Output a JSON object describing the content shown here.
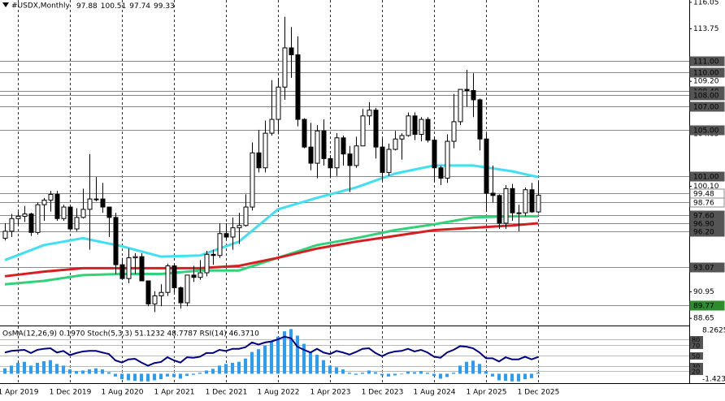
{
  "chart_data": {
    "type": "candlestick",
    "title": "#USDX,Monthly",
    "categories": [
      "Feb 2019",
      "Mar 2019",
      "Apr 2019",
      "May 2019",
      "Jun 2019",
      "Jul 2019",
      "Aug 2019",
      "Sep 2019",
      "Oct 2019",
      "Nov 2019",
      "Dec 2019",
      "Jan 2020",
      "Feb 2020",
      "Mar 2020",
      "Apr 2020",
      "May 2020",
      "Jun 2020",
      "Jul 2020",
      "Aug 2020",
      "Sep 2020",
      "Oct 2020",
      "Nov 2020",
      "Dec 2020",
      "Jan 2021",
      "Feb 2021",
      "Mar 2021",
      "Apr 2021",
      "May 2021",
      "Jun 2021",
      "Jul 2021",
      "Aug 2021",
      "Sep 2021",
      "Oct 2021",
      "Nov 2021",
      "Dec 2021",
      "Jan 2022",
      "Feb 2022",
      "Mar 2022",
      "Apr 2022",
      "May 2022",
      "Jun 2022",
      "Jul 2022",
      "Aug 2022",
      "Sep 2022",
      "Oct 2022",
      "Nov 2022",
      "Dec 2022",
      "Jan 2023",
      "Feb 2023",
      "Mar 2023",
      "Apr 2023",
      "May 2023",
      "Jun 2023",
      "Jul 2023",
      "Aug 2023",
      "Sep 2023",
      "Oct 2023",
      "Nov 2023",
      "Dec 2023",
      "Jan 2024",
      "Feb 2024",
      "Mar 2024",
      "Apr 2024",
      "May 2024",
      "Jun 2024",
      "Jul 2024",
      "Aug 2024",
      "Sep 2024",
      "Oct 2024",
      "Nov 2024",
      "Dec 2024",
      "Jan 2025",
      "Feb 2025",
      "Mar 2025",
      "Apr 2025",
      "May 2025",
      "Jun 2025",
      "Jul 2025",
      "Aug 2025",
      "Sep 2025",
      "Oct 2025",
      "Nov 2025",
      "Dec 2025"
    ],
    "open": [
      95.6,
      96.2,
      97.3,
      97.5,
      97.7,
      96.1,
      98.5,
      98.9,
      99.4,
      97.3,
      98.3,
      96.4,
      97.4,
      98.1,
      99.0,
      99.0,
      98.3,
      97.4,
      93.3,
      92.1,
      93.9,
      94.0,
      91.9,
      89.9,
      90.6,
      90.9,
      93.2,
      91.3,
      90.0,
      92.4,
      92.2,
      92.6,
      94.2,
      94.1,
      96.0,
      95.7,
      96.5,
      96.7,
      98.3,
      103.0,
      101.7,
      104.7,
      105.9,
      108.7,
      112.1,
      111.5,
      105.9,
      103.5,
      102.1,
      104.9,
      102.5,
      101.7,
      104.3,
      102.9,
      101.9,
      103.6,
      106.2,
      106.7,
      103.5,
      101.3,
      103.3,
      104.2,
      104.5,
      106.2,
      104.6,
      105.9,
      104.1,
      101.7,
      100.8,
      104.0,
      105.7,
      108.5,
      108.4,
      107.6,
      104.2,
      99.5,
      99.3,
      96.9,
      99.9,
      97.8,
      97.8,
      99.8,
      97.88
    ],
    "high": [
      96.9,
      97.7,
      97.9,
      98.4,
      97.8,
      98.7,
      99.1,
      99.7,
      99.7,
      98.5,
      98.4,
      98.2,
      99.9,
      102.9,
      100.9,
      100.4,
      98.3,
      97.8,
      93.9,
      94.7,
      94.3,
      94.3,
      91.9,
      91.0,
      91.6,
      93.4,
      93.4,
      91.4,
      92.4,
      93.2,
      93.7,
      94.5,
      94.6,
      96.9,
      96.9,
      97.4,
      97.8,
      99.4,
      103.9,
      105.0,
      105.8,
      109.3,
      109.5,
      114.8,
      113.9,
      113.1,
      106.0,
      105.6,
      105.4,
      105.9,
      102.8,
      104.7,
      104.5,
      103.6,
      104.4,
      106.8,
      107.4,
      106.9,
      104.3,
      103.8,
      104.9,
      104.7,
      106.5,
      106.5,
      106.1,
      106.1,
      104.4,
      101.9,
      104.6,
      108.1,
      108.5,
      110.2,
      109.9,
      107.7,
      104.7,
      101.9,
      99.4,
      100.2,
      100.3,
      98.5,
      100.0,
      100.4,
      100.51
    ],
    "low": [
      95.4,
      95.7,
      96.7,
      97.0,
      95.8,
      95.9,
      97.1,
      97.9,
      97.1,
      97.1,
      96.4,
      96.2,
      97.3,
      94.6,
      98.8,
      97.8,
      95.7,
      92.5,
      92.1,
      91.7,
      92.5,
      91.9,
      89.7,
      89.2,
      89.7,
      90.6,
      90.9,
      89.5,
      89.7,
      91.8,
      92.0,
      92.3,
      93.3,
      93.9,
      95.5,
      94.6,
      95.1,
      96.6,
      98.0,
      101.3,
      101.3,
      104.5,
      104.6,
      107.6,
      109.5,
      105.3,
      103.4,
      101.5,
      100.8,
      101.9,
      100.8,
      101.0,
      101.9,
      99.6,
      101.7,
      103.6,
      105.4,
      102.5,
      100.6,
      101.0,
      103.2,
      102.4,
      104.4,
      104.1,
      104.0,
      103.9,
      100.5,
      100.2,
      100.4,
      103.4,
      105.4,
      107.0,
      106.1,
      103.2,
      97.9,
      98.7,
      96.4,
      96.4,
      97.1,
      96.2,
      97.5,
      97.8,
      97.74
    ],
    "close": [
      96.2,
      97.3,
      97.5,
      97.7,
      96.1,
      98.5,
      98.9,
      99.4,
      97.3,
      98.3,
      96.4,
      97.4,
      98.1,
      99.0,
      99.0,
      98.3,
      97.4,
      93.3,
      92.1,
      93.9,
      94.0,
      91.9,
      89.9,
      90.6,
      90.9,
      93.2,
      91.3,
      90.0,
      92.4,
      92.2,
      92.6,
      94.2,
      94.1,
      96.0,
      95.7,
      96.5,
      96.7,
      98.3,
      103.0,
      101.7,
      104.7,
      105.9,
      108.7,
      112.1,
      111.5,
      105.9,
      103.5,
      102.1,
      104.9,
      102.5,
      101.7,
      104.3,
      102.9,
      101.9,
      103.6,
      106.2,
      106.7,
      103.5,
      101.3,
      103.3,
      104.2,
      104.5,
      106.2,
      104.6,
      105.9,
      104.1,
      101.7,
      100.8,
      104.0,
      105.7,
      108.5,
      108.4,
      107.6,
      104.2,
      99.5,
      99.3,
      96.9,
      99.9,
      97.8,
      97.8,
      99.8,
      97.88,
      99.33
    ],
    "colors": {
      "up": "#ffffff",
      "down": "#000000",
      "wick": "#000000"
    },
    "ylim": [
      88.1,
      116.25
    ],
    "yticks": [
      116.05,
      113.75,
      {
        "value": 109.2,
        "label": "109.20"
      },
      104.65,
      {
        "value": 100.1,
        "label": "100.10"
      },
      90.95,
      88.65
    ],
    "xticks": [
      {
        "value": "Apr 2019",
        "label": "1 Apr 2019"
      },
      {
        "value": "Dec 2019",
        "label": "1 Dec 2019"
      },
      {
        "value": "Aug 2020",
        "label": "1 Aug 2020"
      },
      {
        "value": "Apr 2021",
        "label": "1 Apr 2021"
      },
      {
        "value": "Dec 2021",
        "label": "1 Dec 2021"
      },
      {
        "value": "Aug 2022",
        "label": "1 Aug 2022"
      },
      {
        "value": "Apr 2023",
        "label": "1 Apr 2023"
      },
      {
        "value": "Dec 2023",
        "label": "1 Dec 2023"
      },
      {
        "value": "Aug 2024",
        "label": "1 Aug 2024"
      },
      {
        "value": "Apr 2025",
        "label": "1 Apr 2025"
      },
      {
        "value": "Dec 2025",
        "label": "1 Dec 2025"
      }
    ],
    "levels": [
      {
        "value": 111,
        "label": "111.00",
        "color": "#555555"
      },
      {
        "value": 110,
        "label": "110.00",
        "color": "#555555"
      },
      {
        "value": 108.4,
        "label": "108.40",
        "color": "#555555"
      },
      {
        "value": 108,
        "label": "108.00",
        "color": "#555555"
      },
      {
        "value": 107,
        "label": "107.00",
        "color": "#555555"
      },
      {
        "value": 105,
        "label": "105.00",
        "color": "#555555"
      },
      {
        "value": 101,
        "label": "101.00",
        "color": "#555555"
      },
      {
        "value": 99.48,
        "label": "99.48",
        "color": "#ffffff"
      },
      {
        "value": 98.76,
        "label": "98.76",
        "color": "#ffffff"
      },
      {
        "value": 97.6,
        "label": "97.60",
        "color": "#555555"
      },
      {
        "value": 96.9,
        "label": "96.90",
        "color": "#555555"
      },
      {
        "value": 96.2,
        "label": "96.20",
        "color": "#555555"
      },
      {
        "value": 93.07,
        "label": "93.07",
        "color": "#555555"
      },
      {
        "value": 89.77,
        "label": "89.77",
        "color": "#2e8b2e"
      }
    ],
    "moving_averages": [
      {
        "color": "#40e0f0",
        "x": [
          "Feb 2019",
          "Aug 2019",
          "Feb 2020",
          "Aug 2020",
          "Feb 2021",
          "Aug 2021",
          "Feb 2022",
          "Aug 2022",
          "Feb 2023",
          "Aug 2023",
          "Feb 2024",
          "Aug 2024",
          "Feb 2025",
          "Aug 2025",
          "Dec 2025"
        ],
        "values": [
          93.7,
          95.0,
          95.6,
          94.9,
          94.0,
          94.1,
          95.3,
          98.1,
          99.1,
          100.0,
          101.2,
          101.9,
          101.9,
          101.4,
          100.9
        ]
      },
      {
        "color": "#32d27a",
        "x": [
          "Feb 2019",
          "Aug 2019",
          "Feb 2020",
          "Aug 2020",
          "Feb 2021",
          "Aug 2021",
          "Feb 2022",
          "Aug 2022",
          "Feb 2023",
          "Aug 2023",
          "Feb 2024",
          "Aug 2024",
          "Feb 2025",
          "Aug 2025",
          "Dec 2025"
        ],
        "values": [
          91.6,
          91.9,
          92.4,
          92.5,
          92.5,
          92.8,
          92.8,
          93.9,
          95.0,
          95.6,
          96.3,
          96.8,
          97.4,
          97.5,
          97.5
        ]
      },
      {
        "color": "#d42020",
        "x": [
          "Feb 2019",
          "Aug 2019",
          "Feb 2020",
          "Aug 2020",
          "Feb 2021",
          "Aug 2021",
          "Feb 2022",
          "Aug 2022",
          "Feb 2023",
          "Aug 2023",
          "Feb 2024",
          "Aug 2024",
          "Feb 2025",
          "Aug 2025",
          "Dec 2025"
        ],
        "values": [
          92.3,
          92.7,
          93.0,
          93.0,
          93.0,
          93.0,
          93.2,
          93.9,
          94.7,
          95.3,
          95.8,
          96.3,
          96.5,
          96.7,
          96.9
        ]
      }
    ],
    "indicator": {
      "label": "OsMA(12,26,9) 0.1970 Stoch(5,3,3) 51.1232 48.7787 RSI(14) 46.3710",
      "osma": [
        1.0,
        1.5,
        2.0,
        2.2,
        1.5,
        2.0,
        2.3,
        2.5,
        1.8,
        1.5,
        0.8,
        0.5,
        0.6,
        0.8,
        1.0,
        0.8,
        0.3,
        -0.5,
        -1.0,
        -1.2,
        -1.3,
        -1.4,
        -1.4,
        -1.2,
        -1.0,
        -0.5,
        -0.6,
        -0.9,
        -0.4,
        -0.2,
        0.2,
        0.6,
        0.9,
        1.5,
        1.8,
        2.0,
        2.2,
        2.8,
        4.0,
        4.5,
        5.2,
        6.0,
        6.8,
        7.8,
        8.2,
        7.0,
        5.5,
        4.0,
        3.5,
        2.5,
        1.5,
        1.2,
        0.8,
        0.2,
        -0.2,
        0.2,
        0.6,
        0.3,
        -0.3,
        -0.5,
        -0.3,
        -0.1,
        0.4,
        0.3,
        0.5,
        0.2,
        -0.4,
        -0.9,
        -0.6,
        0.2,
        1.5,
        2.2,
        2.4,
        1.8,
        0.5,
        -0.5,
        -1.2,
        -1.3,
        -1.4,
        -1.4,
        -1.0,
        -0.8,
        0.197
      ],
      "osma_color": "#2a9df4",
      "osma_ylim": [
        -1.4236,
        8.2625
      ],
      "osma_ticks": [
        8.2625,
        -1.4236
      ],
      "rsi": [
        55,
        58,
        59,
        60,
        54,
        60,
        62,
        63,
        55,
        58,
        50,
        54,
        57,
        58,
        58,
        55,
        52,
        40,
        36,
        42,
        43,
        36,
        30,
        35,
        37,
        46,
        40,
        36,
        46,
        45,
        47,
        54,
        54,
        60,
        58,
        62,
        62,
        65,
        74,
        70,
        74,
        76,
        80,
        85,
        82,
        66,
        60,
        55,
        62,
        55,
        52,
        58,
        55,
        51,
        56,
        62,
        63,
        54,
        48,
        54,
        57,
        58,
        62,
        57,
        60,
        55,
        47,
        45,
        55,
        60,
        67,
        66,
        63,
        55,
        44,
        44,
        38,
        46,
        42,
        42,
        47,
        42,
        46.371
      ],
      "rsi_color": "#000080",
      "rsi_ylim": [
        0,
        100
      ],
      "rsi_levels": [
        80,
        70,
        50,
        30,
        20
      ]
    }
  }
}
